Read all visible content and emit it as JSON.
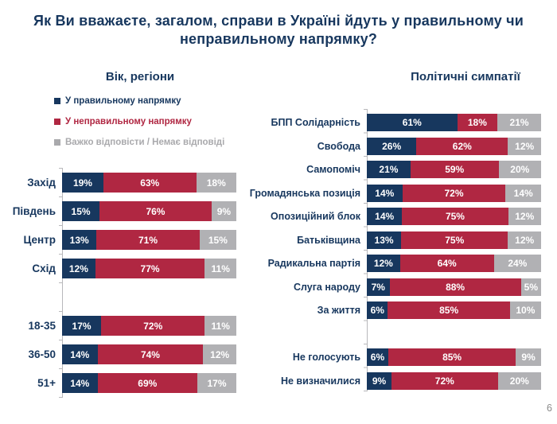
{
  "title": "Як Ви вважаєте, загалом, справи в Україні йдуть у правильному чи неправильному напрямку?",
  "page_number": "6",
  "colors": {
    "positive": "#17375e",
    "negative": "#b02742",
    "neutral": "#b1b1b4",
    "title": "#17375e",
    "legend_neutral": "#a9a9ac",
    "axis": "#b8b8bb"
  },
  "legend": {
    "items": [
      {
        "label": "У правильному напрямку",
        "color": "#17375e"
      },
      {
        "label": "У неправильному напрямку",
        "color": "#b02742"
      },
      {
        "label": "Важко відповісти / Немає відповіді",
        "color": "#a9a9ac"
      }
    ]
  },
  "chart_data": [
    {
      "type": "bar",
      "orientation": "horizontal",
      "stacked": true,
      "title": "Вік, регіони",
      "unit": "%",
      "xlim": [
        0,
        100
      ],
      "series_names": [
        "У правильному напрямку",
        "У неправильному напрямку",
        "Важко відповісти / Немає відповіді"
      ],
      "rows": [
        {
          "label": "Захід",
          "values": [
            19,
            63,
            18
          ]
        },
        {
          "label": "Південь",
          "values": [
            15,
            76,
            9
          ]
        },
        {
          "label": "Центр",
          "values": [
            13,
            71,
            15
          ]
        },
        {
          "label": "Схід",
          "values": [
            12,
            77,
            11
          ]
        },
        {
          "spacer": true
        },
        {
          "label": "18-35",
          "values": [
            17,
            72,
            11
          ]
        },
        {
          "label": "36-50",
          "values": [
            14,
            74,
            12
          ]
        },
        {
          "label": "51+",
          "values": [
            14,
            69,
            17
          ]
        }
      ]
    },
    {
      "type": "bar",
      "orientation": "horizontal",
      "stacked": true,
      "title": "Політичні симпатії",
      "unit": "%",
      "xlim": [
        0,
        100
      ],
      "series_names": [
        "У правильному напрямку",
        "У неправильному напрямку",
        "Важко відповісти / Немає відповіді"
      ],
      "rows": [
        {
          "label": "БПП Солідарність",
          "values": [
            61,
            18,
            21
          ]
        },
        {
          "label": "Свобода",
          "values": [
            26,
            62,
            12
          ]
        },
        {
          "label": "Самопоміч",
          "values": [
            21,
            59,
            20
          ]
        },
        {
          "label": "Громадянська позиція",
          "values": [
            14,
            72,
            14
          ]
        },
        {
          "label": "Опозиційний блок",
          "values": [
            14,
            75,
            12
          ]
        },
        {
          "label": "Батьківщина",
          "values": [
            13,
            75,
            12
          ]
        },
        {
          "label": "Радикальна партія",
          "values": [
            12,
            64,
            24
          ]
        },
        {
          "label": "Слуга народу",
          "values": [
            7,
            88,
            5
          ]
        },
        {
          "label": "За життя",
          "values": [
            6,
            85,
            10
          ]
        },
        {
          "spacer": true
        },
        {
          "label": "Не голосують",
          "values": [
            6,
            85,
            9
          ]
        },
        {
          "label": "Не визначилися",
          "values": [
            9,
            72,
            20
          ]
        }
      ]
    }
  ]
}
